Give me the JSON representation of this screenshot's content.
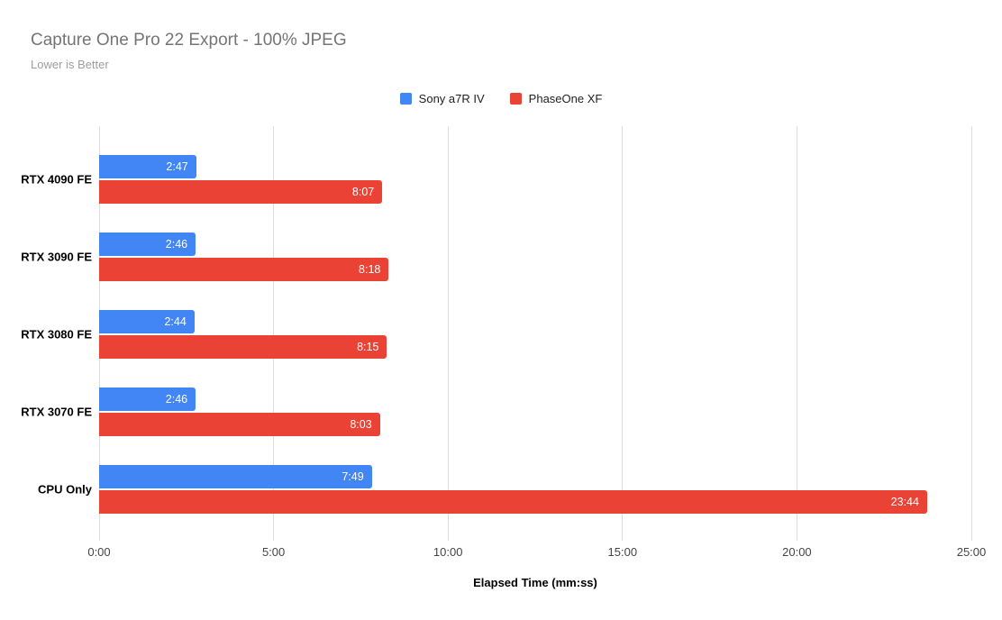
{
  "header": {
    "title": "Capture One Pro 22 Export - 100% JPEG",
    "subtitle": "Lower is Better"
  },
  "chart_data": {
    "type": "bar",
    "orientation": "horizontal",
    "title": "Capture One Pro 22 Export - 100% JPEG",
    "subtitle": "Lower is Better",
    "categories": [
      "RTX 4090 FE",
      "RTX 3090 FE",
      "RTX 3080 FE",
      "RTX 3070 FE",
      "CPU Only"
    ],
    "series": [
      {
        "name": "Sony a7R IV",
        "color": "#4285f4",
        "values_mmss": [
          "2:47",
          "2:46",
          "2:44",
          "2:46",
          "7:49"
        ],
        "values_seconds": [
          167,
          166,
          164,
          166,
          469
        ]
      },
      {
        "name": "PhaseOne XF",
        "color": "#ea4335",
        "values_mmss": [
          "8:07",
          "8:18",
          "8:15",
          "8:03",
          "23:44"
        ],
        "values_seconds": [
          487,
          498,
          495,
          483,
          1424
        ]
      }
    ],
    "xlabel": "Elapsed Time (mm:ss)",
    "x_ticks": [
      "0:00",
      "5:00",
      "10:00",
      "15:00",
      "20:00",
      "25:00"
    ],
    "x_tick_seconds": [
      0,
      300,
      600,
      900,
      1200,
      1500
    ],
    "x_max_seconds": 1500,
    "grid": true,
    "legend_position": "top",
    "value_labels": "inside-end"
  },
  "colors": {
    "background": "#ffffff",
    "title_text": "#757575",
    "subtitle_text": "#9e9e9e",
    "category_label_text": "#000000",
    "tick_label_text": "#444444",
    "axis_title_text": "#000000",
    "legend_text": "#222222",
    "gridline": "#dddddd",
    "bar_value_text": "#ffffff",
    "series_1": "#4285f4",
    "series_2": "#ea4335"
  }
}
